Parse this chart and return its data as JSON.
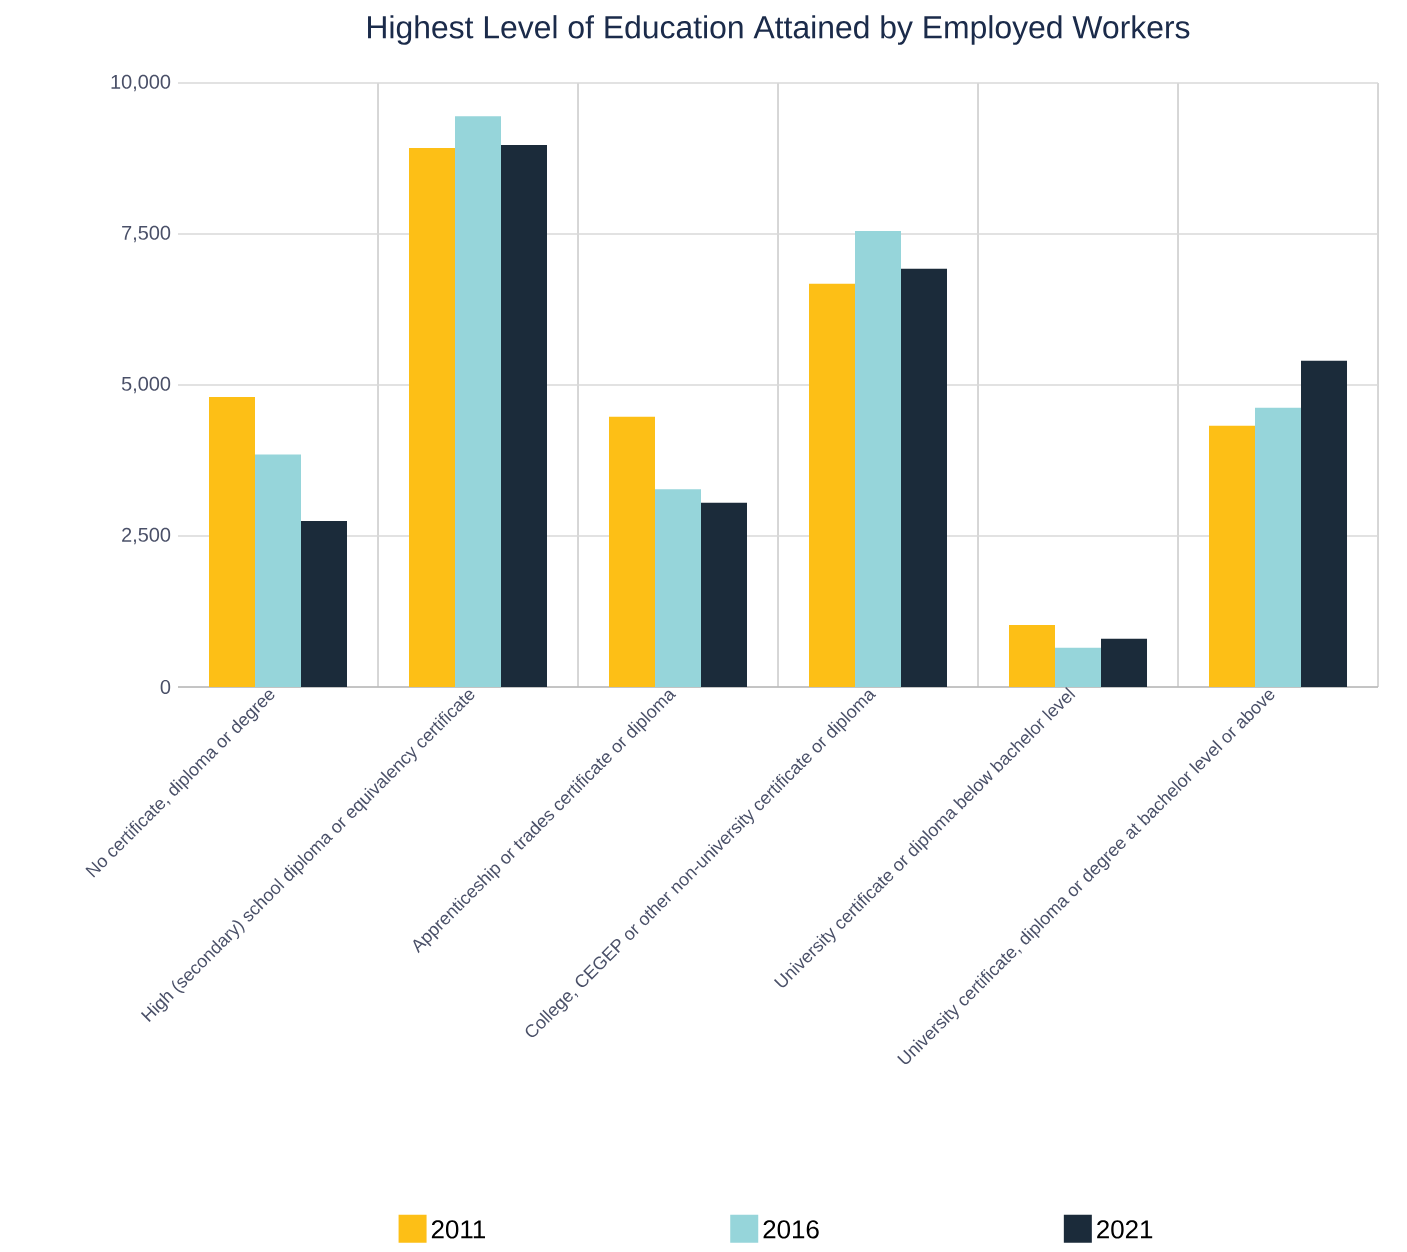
{
  "chart_data": {
    "type": "bar",
    "title": "Highest Level of Education Attained by Employed Workers",
    "categories": [
      "No certificate, diploma or degree",
      "High (secondary) school diploma or equivalency certificate",
      "Apprenticeship or trades certificate or diploma",
      "College, CEGEP or other non-university certificate or diploma",
      "University certificate or diploma below bachelor level",
      "University certificate, diploma or degree at bachelor level or above"
    ],
    "series": [
      {
        "name": "2011",
        "color": "#fdbf16",
        "values": [
          4800,
          8925,
          4475,
          6675,
          1025,
          4325
        ]
      },
      {
        "name": "2016",
        "color": "#96d5da",
        "values": [
          3850,
          9450,
          3275,
          7550,
          650,
          4625
        ]
      },
      {
        "name": "2021",
        "color": "#1b2b3a",
        "values": [
          2750,
          8975,
          3050,
          6925,
          800,
          5400
        ]
      }
    ],
    "ylim": [
      0,
      10000
    ],
    "yticks": [
      {
        "value": 0,
        "label": "0"
      },
      {
        "value": 2500,
        "label": "2,500"
      },
      {
        "value": 5000,
        "label": "5,000"
      },
      {
        "value": 7500,
        "label": "7,500"
      },
      {
        "value": 10000,
        "label": "10,000"
      }
    ],
    "grid": true,
    "legend": "bottom"
  }
}
